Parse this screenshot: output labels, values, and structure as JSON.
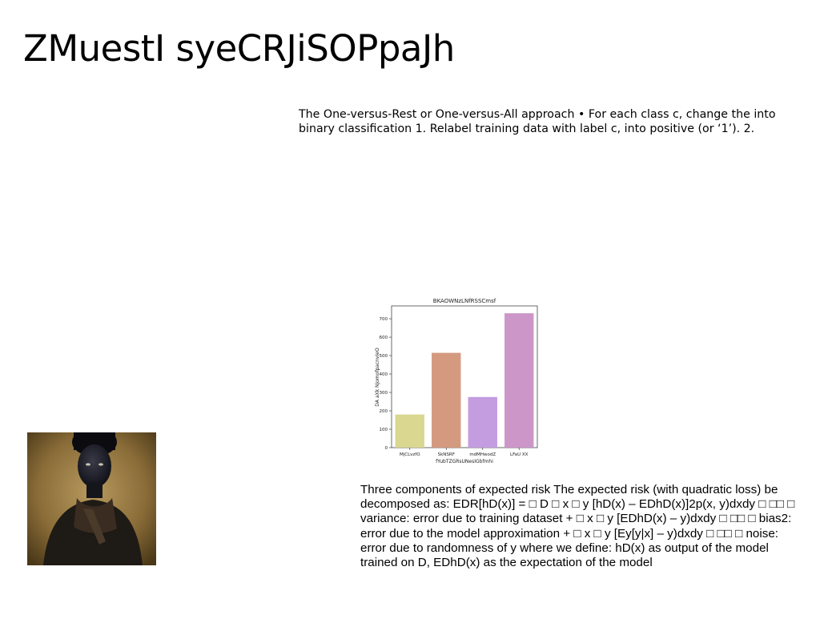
{
  "slide": {
    "title": "ZMuestI syeCRJiSOPpaJh",
    "text_block_1": "The One-versus-Rest or One-versus-All approach • For each class c, change the into binary classification 1. Relabel training data with label c, into positive (or ‘1’). 2.",
    "text_block_2": "Three components of expected risk The expected risk (with quadratic loss) be decomposed as: EDR[hD(x)] = □ D □ x □ y [hD(x) – EDhD(x)]2p(x, y)dxdy □ □□ □ variance: error due to training dataset + □ x □ y [EDhD(x) – y)dxdy □ □□ □ bias2: error due to the model approximation + □ x □ y [Ey[y|x] – y)dxdy □ □□ □ noise: error due to randomness of y where we define: hD(x) as output of the model trained on D, EDhD(x) as the expectation of the model"
  },
  "chart_data": {
    "type": "bar",
    "title": "BKAOWNzLNfRSSCmsf",
    "xlabel": "fYubTZGRsUNesIGbfmhi",
    "ylabel": "DA aXk NjomofpacnvieO",
    "categories": [
      "MjCLvzfO",
      "SkNSRF",
      "mdMHwodZ",
      "LFaU XX"
    ],
    "values": [
      180,
      515,
      275,
      730
    ],
    "colors": [
      "#d9d790",
      "#d49a80",
      "#c39ddf",
      "#cc96c8"
    ],
    "ylim": [
      0,
      770
    ],
    "yticks": [
      0,
      100,
      200,
      300,
      400,
      500,
      600,
      700
    ],
    "grid": false
  }
}
